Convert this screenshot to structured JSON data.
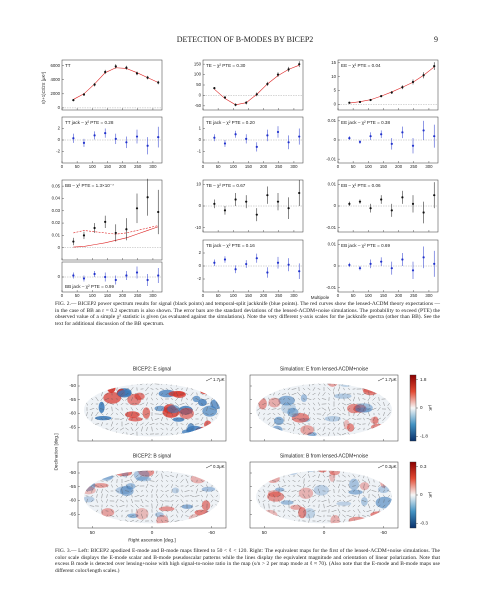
{
  "header": {
    "title": "DETECTION OF B-MODES BY BICEP2",
    "page": "9"
  },
  "figure2": {
    "ylabel": "ℓ(ℓ+1)Cℓ/2π [μK²]",
    "xlabel": "Multipole",
    "ell": [
      37.5,
      72.5,
      107.5,
      142.5,
      177.5,
      212.5,
      247.5,
      282.5,
      317.5
    ],
    "xlim": [
      0,
      330
    ],
    "xticks": [
      0,
      50,
      100,
      150,
      200,
      250,
      300
    ],
    "panels": [
      {
        "label": "TT",
        "color": "#111111",
        "ylim": [
          -300,
          6800
        ],
        "yticks": [
          0,
          2000,
          4000,
          6000
        ],
        "values": [
          1100,
          1900,
          3300,
          5100,
          5900,
          5700,
          4900,
          4300,
          3600
        ],
        "errors": [
          150,
          200,
          250,
          300,
          300,
          280,
          260,
          250,
          250
        ],
        "models": [
          [
            1200,
            2000,
            3400,
            5000,
            5700,
            5600,
            5000,
            4300,
            3600
          ]
        ]
      },
      {
        "label": "TT jack – χ² PTE = 0.28",
        "color": "#2233cc",
        "ylim": [
          -4,
          4
        ],
        "yticks": [
          -2,
          0,
          2
        ],
        "values": [
          0.3,
          -0.5,
          0.8,
          1.2,
          0.2,
          -0.4,
          0.6,
          -1,
          0.5
        ],
        "errors": [
          0.8,
          0.7,
          0.7,
          0.8,
          0.9,
          1,
          1.2,
          1.5,
          1.8
        ],
        "models": []
      },
      {
        "label": "BB – χ² PTE = 1.3×10⁻⁷",
        "color": "#111111",
        "ylim": [
          -0.01,
          0.055
        ],
        "yticks": [
          0,
          0.01,
          0.02,
          0.03,
          0.04,
          0.05
        ],
        "values": [
          0.005,
          0.01,
          0.016,
          0.021,
          0.012,
          0.015,
          0.032,
          0.041,
          0.029
        ],
        "errors": [
          0.003,
          0.003,
          0.004,
          0.005,
          0.007,
          0.009,
          0.012,
          0.015,
          0.018
        ],
        "models": [
          [
            0.0005,
            0.001,
            0.0025,
            0.004,
            0.006,
            0.008,
            0.011,
            0.014,
            0.017
          ],
          [
            0.012,
            0.014,
            0.013,
            0.012,
            0.011,
            0.012,
            0.014,
            0.016,
            0.018
          ]
        ]
      },
      {
        "label": "BB jack – χ² PTE = 0.99",
        "color": "#2233cc",
        "ylim": [
          -0.01,
          0.01
        ],
        "yticks": [
          0
        ],
        "values": [
          0.001,
          -0.001,
          0.002,
          0,
          -0.002,
          0.001,
          0.003,
          -0.002,
          0.001
        ],
        "errors": [
          0.002,
          0.002,
          0.002,
          0.003,
          0.003,
          0.003,
          0.004,
          0.004,
          0.005
        ],
        "models": []
      },
      {
        "label": "TE – χ² PTE = 0.30",
        "color": "#111111",
        "ylim": [
          -70,
          170
        ],
        "yticks": [
          -50,
          0,
          50,
          100,
          150
        ],
        "values": [
          35,
          -10,
          -45,
          -35,
          5,
          55,
          100,
          125,
          150
        ],
        "errors": [
          5,
          6,
          7,
          8,
          9,
          10,
          11,
          12,
          14
        ],
        "models": [
          [
            30,
            -15,
            -45,
            -35,
            5,
            55,
            95,
            125,
            145
          ]
        ]
      },
      {
        "label": "TE jack – χ² PTE = 0.20",
        "color": "#2233cc",
        "ylim": [
          -2,
          2
        ],
        "yticks": [
          -1,
          0,
          1
        ],
        "values": [
          0.2,
          -0.3,
          0.5,
          0.1,
          -0.6,
          0.4,
          0.7,
          -0.2,
          0.3
        ],
        "errors": [
          0.3,
          0.3,
          0.3,
          0.4,
          0.4,
          0.5,
          0.5,
          0.6,
          0.7
        ],
        "models": []
      },
      {
        "label": "TB – χ² PTE = 0.67",
        "color": "#111111",
        "ylim": [
          -12,
          12
        ],
        "yticks": [
          -10,
          0,
          10
        ],
        "values": [
          1,
          -2,
          3,
          2,
          -4,
          5,
          2,
          -1,
          6
        ],
        "errors": [
          2,
          2,
          3,
          3,
          3,
          4,
          4,
          5,
          6
        ],
        "models": []
      },
      {
        "label": "TB jack – χ² PTE = 0.16",
        "color": "#2233cc",
        "ylim": [
          -4,
          4
        ],
        "yticks": [
          -2,
          0,
          2
        ],
        "values": [
          0.5,
          1,
          -0.5,
          0.3,
          1.2,
          -1,
          0.5,
          0.2,
          -0.8
        ],
        "errors": [
          0.5,
          0.5,
          0.6,
          0.6,
          0.7,
          0.8,
          0.9,
          1,
          1.2
        ],
        "models": []
      },
      {
        "label": "EE – χ² PTE = 0.04",
        "color": "#111111",
        "ylim": [
          -2,
          16
        ],
        "yticks": [
          0,
          5,
          10,
          15
        ],
        "values": [
          0.6,
          0.9,
          1.6,
          3,
          4.3,
          6.2,
          8.1,
          10.5,
          13.8
        ],
        "errors": [
          0.2,
          0.2,
          0.3,
          0.4,
          0.5,
          0.7,
          0.9,
          1.1,
          1.4
        ],
        "models": [
          [
            0.5,
            1,
            1.7,
            3,
            4.5,
            6.2,
            8,
            10.5,
            13.5
          ]
        ]
      },
      {
        "label": "EE jack – χ² PTE = 0.38",
        "color": "#2233cc",
        "ylim": [
          -0.012,
          0.012
        ],
        "yticks": [
          -0.01,
          0,
          0.01
        ],
        "values": [
          0.001,
          -0.001,
          0.002,
          0.003,
          -0.002,
          0.004,
          -0.003,
          0.005,
          0.002
        ],
        "errors": [
          0.001,
          0.001,
          0.002,
          0.002,
          0.003,
          0.003,
          0.004,
          0.005,
          0.006
        ],
        "models": []
      },
      {
        "label": "EB – χ² PTE = 0.06",
        "color": "#111111",
        "ylim": [
          -0.012,
          0.012
        ],
        "yticks": [
          -0.01,
          0,
          0.01
        ],
        "values": [
          0.001,
          0.002,
          -0.001,
          0.003,
          -0.002,
          0.004,
          0.001,
          -0.003,
          0.005
        ],
        "errors": [
          0.001,
          0.001,
          0.002,
          0.002,
          0.003,
          0.003,
          0.004,
          0.005,
          0.006
        ],
        "models": []
      },
      {
        "label": "EB jack – χ² PTE = 0.69",
        "color": "#2233cc",
        "ylim": [
          -0.012,
          0.012
        ],
        "yticks": [
          -0.01,
          0,
          0.01
        ],
        "values": [
          0.0005,
          -0.001,
          0.001,
          0.002,
          -0.001,
          0.003,
          -0.002,
          0.004,
          0.001
        ],
        "errors": [
          0.001,
          0.001,
          0.002,
          0.002,
          0.003,
          0.003,
          0.004,
          0.005,
          0.006
        ],
        "models": []
      }
    ],
    "caption": "FIG. 2.— BICEP2 power spectrum results for signal (black points) and temporal-split jackknife (blue points). The red curves show the lensed-ΛCDM theory expectations — in the case of BB an r = 0.2 spectrum is also shown. The error bars are the standard deviations of the lensed-ΛCDM+noise simulations. The probability to exceed (PTE) the observed value of a simple χ² statistic is given (as evaluated against the simulations). Note the very different y-axis scales for the jackknife spectra (other than BB). See the text for additional discussion of the BB spectrum."
  },
  "figure3": {
    "maps": [
      {
        "title": "BICEP2: E signal",
        "scale": "1.7μK"
      },
      {
        "title": "Simulation: E from lensed-ΛCDM+noise",
        "scale": "1.7μK"
      },
      {
        "title": "BICEP2: B signal",
        "scale": "0.3μK"
      },
      {
        "title": "Simulation: B from lensed-ΛCDM+noise",
        "scale": "0.3μK"
      }
    ],
    "colorbars": [
      {
        "lim": [
          -2.1,
          2.1
        ],
        "ticks": [
          1.8,
          0,
          -1.8
        ],
        "unit": "μK"
      },
      {
        "lim": [
          -0.35,
          0.35
        ],
        "ticks": [
          0.3,
          0,
          -0.3
        ],
        "unit": "μK"
      }
    ],
    "declim": [
      -70,
      -46
    ],
    "decticks": [
      -50,
      -55,
      -60,
      -65
    ],
    "ralim": [
      62,
      -62
    ],
    "raticks": [
      50,
      0,
      -50
    ],
    "ylabel": "Declination [deg.]",
    "xlabel": "Right ascension [deg.]",
    "caption": "FIG. 3.— Left: BICEP2 apodized E-mode and B-mode maps filtered to 50 < ℓ < 120. Right: The equivalent maps for the first of the lensed-ΛCDM+noise simulations. The color scale displays the E-mode scalar and B-mode pseudoscalar patterns while the lines display the equivalent magnitude and orientation of linear polarization. Note that excess B mode is detected over lensing+noise with high signal-to-noise ratio in the map (s/n > 2 per map mode at ℓ ≈ 70). (Also note that the E-mode and B-mode maps use different color/length scales.)"
  }
}
